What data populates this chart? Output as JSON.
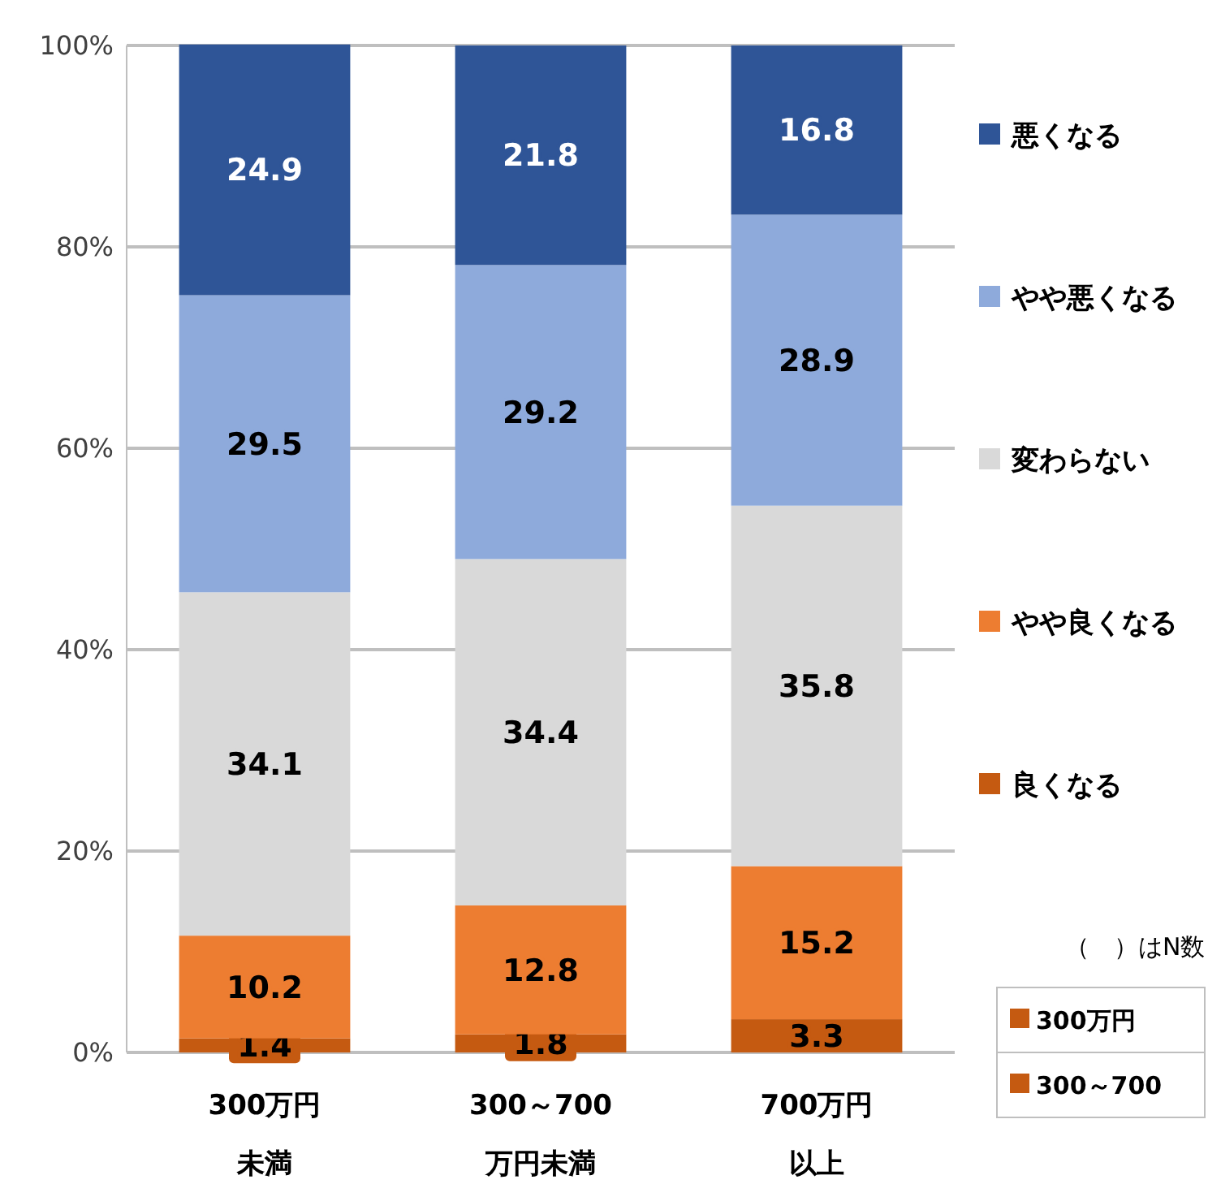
{
  "chart_data": {
    "type": "bar",
    "stacked": true,
    "categories": [
      "300万円未満",
      "300～700万円未満",
      "700万円以上"
    ],
    "series": [
      {
        "name": "良くなる",
        "color": "#c55a11",
        "values": [
          1.4,
          1.8,
          3.3
        ]
      },
      {
        "name": "やや良くなる",
        "color": "#ed7d31",
        "values": [
          10.2,
          12.8,
          15.2
        ]
      },
      {
        "name": "変わらない",
        "color": "#d9d9d9",
        "values": [
          34.1,
          34.4,
          35.8
        ]
      },
      {
        "name": "やや悪くなる",
        "color": "#8eaadb",
        "values": [
          29.5,
          29.2,
          28.9
        ]
      },
      {
        "name": "悪くなる",
        "color": "#2f5597",
        "values": [
          24.9,
          21.8,
          16.8
        ]
      }
    ],
    "ylim": [
      0,
      100
    ],
    "yticks": [
      {
        "value": 0,
        "label": "0%"
      },
      {
        "value": 20,
        "label": "20%"
      },
      {
        "value": 40,
        "label": "40%"
      },
      {
        "value": 60,
        "label": "60%"
      },
      {
        "value": 80,
        "label": "80%"
      },
      {
        "value": 100,
        "label": "100%"
      }
    ],
    "grid": "y",
    "legend": "right",
    "data_labels": true,
    "annotations": [
      "（　）はN数",
      "300万円",
      "300～700"
    ]
  }
}
